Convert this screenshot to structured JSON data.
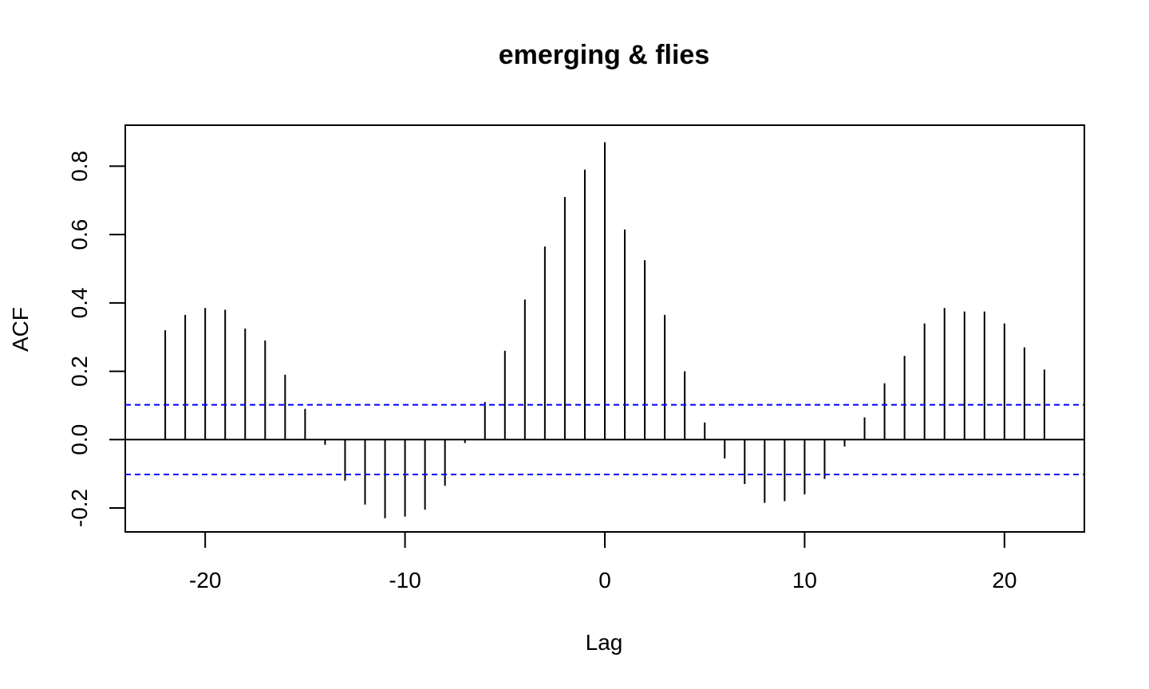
{
  "chart_data": {
    "type": "bar",
    "subtype": "cross-correlation stem plot",
    "title": "emerging & flies",
    "xlabel": "Lag",
    "ylabel": "ACF",
    "xlim": [
      -24,
      24
    ],
    "ylim": [
      -0.27,
      0.92
    ],
    "x_ticks": [
      -20,
      -10,
      0,
      10,
      20
    ],
    "x_tick_labels": [
      "-20",
      "-10",
      "0",
      "10",
      "20"
    ],
    "y_ticks": [
      -0.2,
      0.0,
      0.2,
      0.4,
      0.6,
      0.8
    ],
    "y_tick_labels": [
      "-0.2",
      "0.0",
      "0.2",
      "0.4",
      "0.6",
      "0.8"
    ],
    "lags": [
      -22,
      -21,
      -20,
      -19,
      -18,
      -17,
      -16,
      -15,
      -14,
      -13,
      -12,
      -11,
      -10,
      -9,
      -8,
      -7,
      -6,
      -5,
      -4,
      -3,
      -2,
      -1,
      0,
      1,
      2,
      3,
      4,
      5,
      6,
      7,
      8,
      9,
      10,
      11,
      12,
      13,
      14,
      15,
      16,
      17,
      18,
      19,
      20,
      21,
      22
    ],
    "values": [
      0.32,
      0.365,
      0.385,
      0.38,
      0.325,
      0.29,
      0.19,
      0.09,
      -0.015,
      -0.12,
      -0.19,
      -0.23,
      -0.225,
      -0.205,
      -0.135,
      -0.01,
      0.11,
      0.26,
      0.41,
      0.565,
      0.71,
      0.79,
      0.87,
      0.615,
      0.525,
      0.365,
      0.2,
      0.05,
      -0.055,
      -0.13,
      -0.185,
      -0.18,
      -0.16,
      -0.115,
      -0.02,
      0.065,
      0.165,
      0.245,
      0.34,
      0.385,
      0.375,
      0.375,
      0.34,
      0.27,
      0.205
    ],
    "confidence_bound": 0.102,
    "colors": {
      "stems": "#000000",
      "zero_line": "#000000",
      "confidence_lines": "#0000ff"
    },
    "grid": false,
    "legend": "none"
  }
}
